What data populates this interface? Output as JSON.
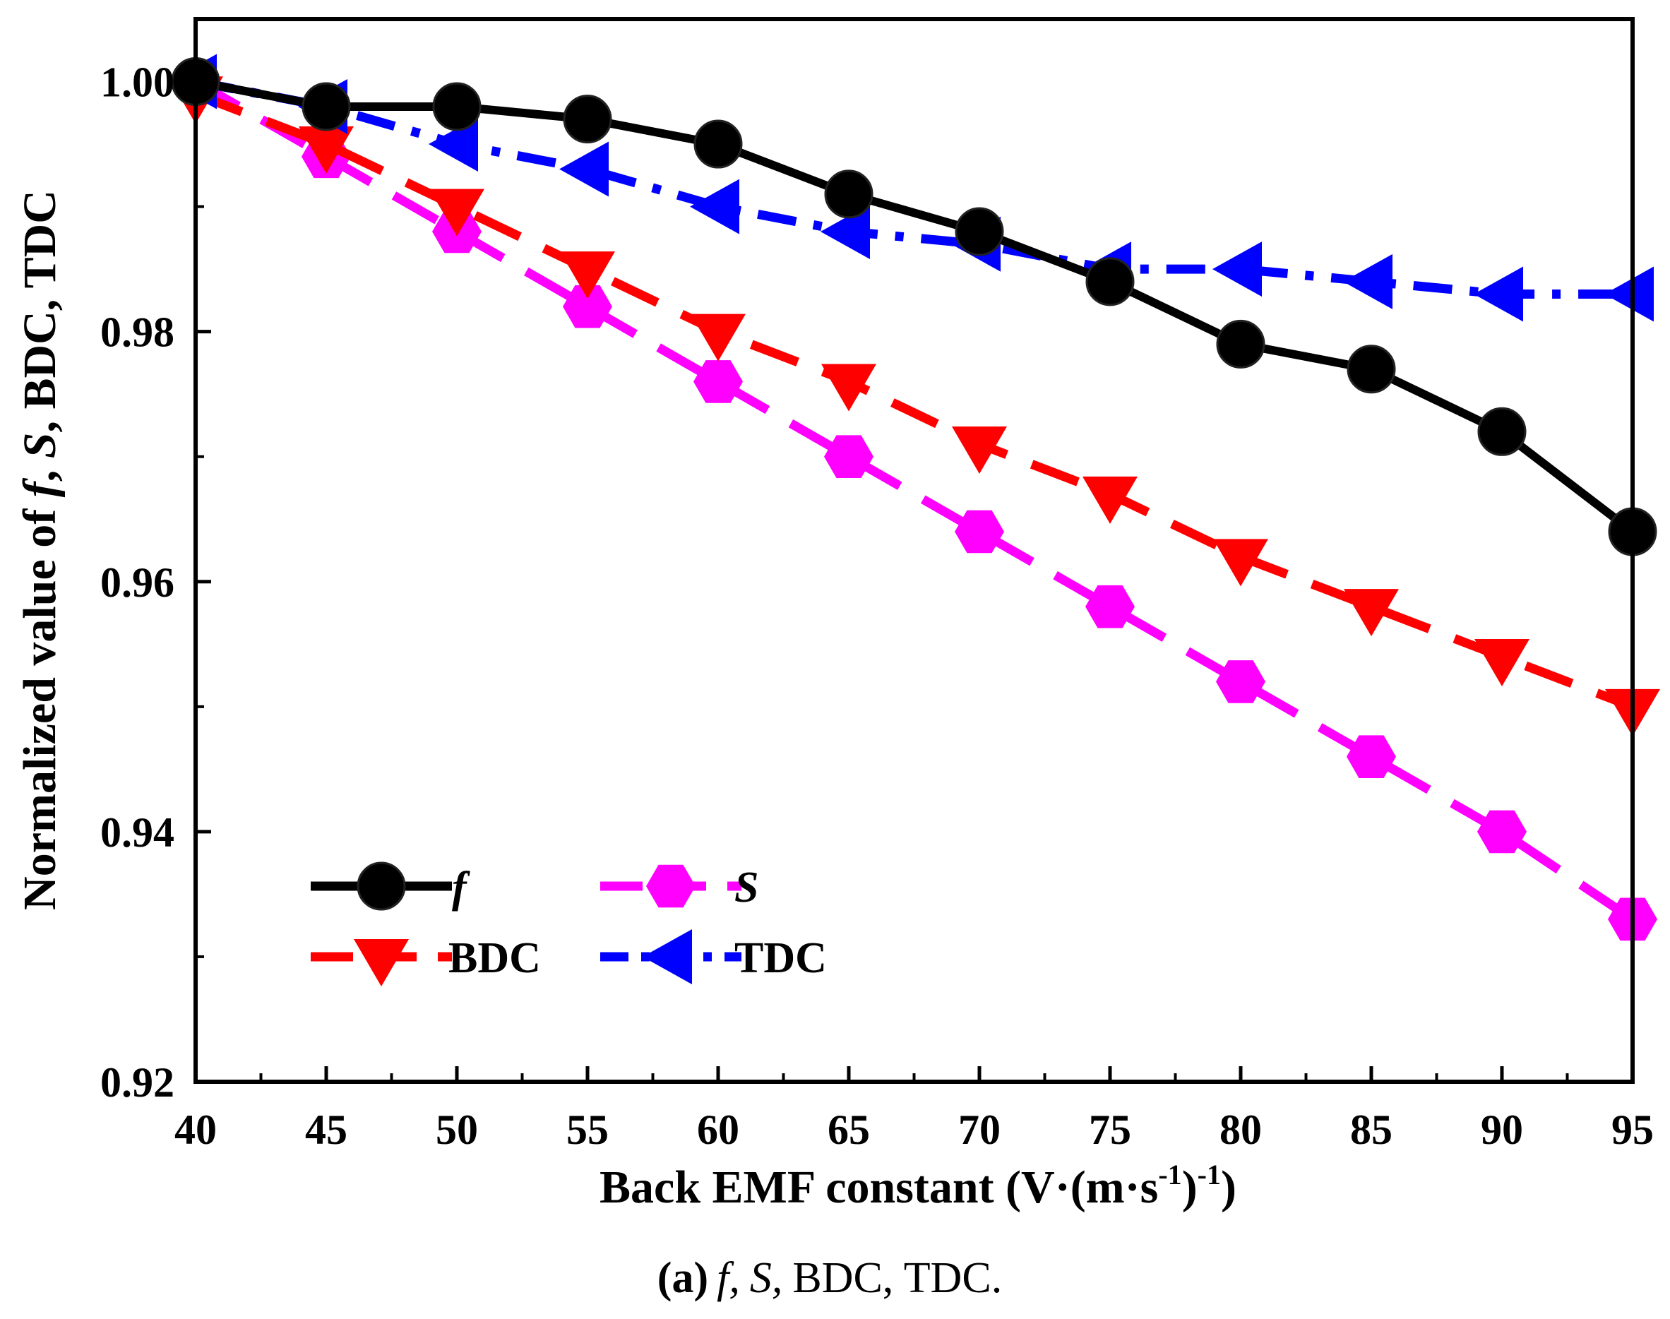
{
  "chart_data": {
    "type": "line",
    "caption": {
      "label": "(a)",
      "f": "f,",
      "s": "S,",
      "rest": "BDC, TDC."
    },
    "xlabel": {
      "main": "Back EMF constant (V·(m·s",
      "sup1": "-1",
      "mid": ")",
      "sup2": "-1",
      "end": ")"
    },
    "ylabel": {
      "pre": "Normalized value of ",
      "f": "f",
      "mid": ", ",
      "s": "S",
      "post": ", BDC, TDC"
    },
    "xlim": [
      40,
      95
    ],
    "ylim": [
      0.92,
      1.005
    ],
    "x_ticks": [
      40,
      45,
      50,
      55,
      60,
      65,
      70,
      75,
      80,
      85,
      90,
      95
    ],
    "x_tick_labels": [
      "40",
      "45",
      "50",
      "55",
      "60",
      "65",
      "70",
      "75",
      "80",
      "85",
      "90",
      "95"
    ],
    "y_ticks": [
      0.92,
      0.94,
      0.96,
      0.98,
      1.0
    ],
    "y_tick_labels": [
      "0.92",
      "0.94",
      "0.96",
      "0.98",
      "1.00"
    ],
    "x": [
      40,
      45,
      50,
      55,
      60,
      65,
      70,
      75,
      80,
      85,
      90,
      95
    ],
    "series": [
      {
        "id": "s",
        "name": "S",
        "color": "#ff00ff",
        "marker": "hexagon",
        "line": "dash",
        "values": [
          1.0,
          0.994,
          0.988,
          0.982,
          0.976,
          0.97,
          0.964,
          0.958,
          0.952,
          0.946,
          0.94,
          0.933
        ]
      },
      {
        "id": "bdc",
        "name": "BDC",
        "color": "#ff0000",
        "marker": "triangle-down",
        "line": "dash",
        "values": [
          0.999,
          0.995,
          0.99,
          0.985,
          0.98,
          0.976,
          0.971,
          0.967,
          0.962,
          0.958,
          0.954,
          0.95
        ]
      },
      {
        "id": "tdc",
        "name": "TDC",
        "color": "#0000ff",
        "marker": "triangle-left",
        "line": "dashdot",
        "values": [
          1.0,
          0.998,
          0.995,
          0.993,
          0.99,
          0.988,
          0.987,
          0.985,
          0.985,
          0.984,
          0.983,
          0.983
        ]
      },
      {
        "id": "f",
        "name": "f",
        "color": "#000000",
        "marker": "circle",
        "line": "solid",
        "values": [
          1.0,
          0.998,
          0.998,
          0.997,
          0.995,
          0.991,
          0.988,
          0.984,
          0.979,
          0.977,
          0.972,
          0.964
        ]
      }
    ],
    "legend": {
      "position": "lower-left",
      "entries": [
        {
          "series": "f",
          "label": "f",
          "italic": true
        },
        {
          "series": "s",
          "label": "S",
          "italic": true
        },
        {
          "series": "bdc",
          "label": "BDC",
          "italic": false
        },
        {
          "series": "tdc",
          "label": "TDC",
          "italic": false
        }
      ]
    }
  }
}
